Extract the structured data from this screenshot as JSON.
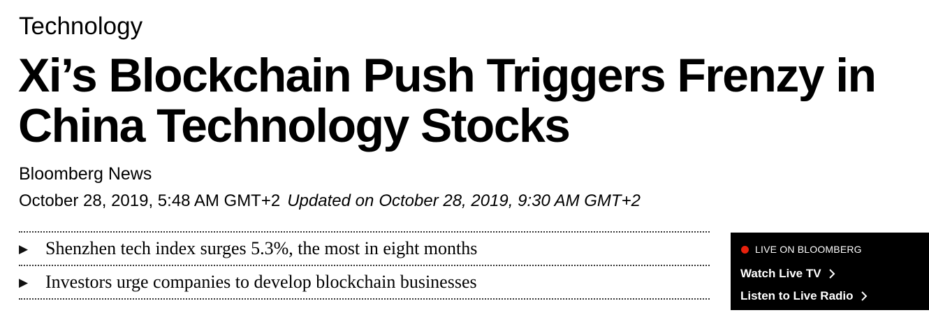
{
  "article": {
    "category": "Technology",
    "headline_line1": "Xi’s Blockchain Push Triggers Frenzy in",
    "headline_line2": "China Technology Stocks",
    "byline": "Bloomberg News",
    "published": "October 28, 2019, 5:48 AM GMT+2",
    "updated_label": "Updated on",
    "updated": "October 28, 2019, 9:30 AM GMT+2",
    "abstract": [
      "Shenzhen tech index surges 5.3%, the most in eight months",
      "Investors urge companies to develop blockchain businesses"
    ],
    "bullet_glyph": "▶"
  },
  "live": {
    "header": "LIVE ON BLOOMBERG",
    "watch_tv": "Watch Live TV",
    "listen_radio": "Listen to Live Radio",
    "icons": [
      "live-indicator-icon",
      "chevron-right-icon"
    ],
    "colors": {
      "background": "#000000",
      "text": "#ffffff",
      "live_dot": "#e8210d"
    }
  }
}
